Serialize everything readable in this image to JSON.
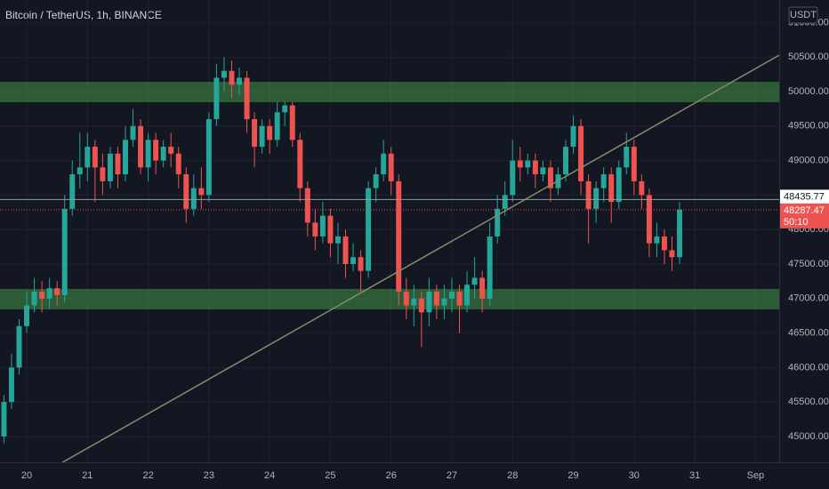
{
  "chart_data": {
    "type": "candlestick",
    "title": "Bitcoin / TetherUS, 1h, BINANCE",
    "currency": "USDT",
    "up_color": "#26a69a",
    "down_color": "#ef5350",
    "grid": true,
    "xlim": [
      19.56,
      32.39
    ],
    "xticks": [
      20,
      21,
      22,
      23,
      24,
      25,
      26,
      27,
      28,
      29,
      30,
      31,
      {
        "value": 32,
        "label": "Sep"
      }
    ],
    "ylim": [
      44626,
      51327
    ],
    "yticks": [
      {
        "value": 45000,
        "label": "45000.00"
      },
      {
        "value": 45500,
        "label": "45500.00"
      },
      {
        "value": 46000,
        "label": "46000.00"
      },
      {
        "value": 46500,
        "label": "46500.00"
      },
      {
        "value": 47000,
        "label": "47000.00"
      },
      {
        "value": 47500,
        "label": "47500.00"
      },
      {
        "value": 48000,
        "label": "48000.00"
      },
      {
        "value": 48500,
        "label": "48500.00"
      },
      {
        "value": 49000,
        "label": "49000.00"
      },
      {
        "value": 49500,
        "label": "49500.00"
      },
      {
        "value": 50000,
        "label": "50000.00"
      },
      {
        "value": 50500,
        "label": "50500.00"
      },
      {
        "value": 51000,
        "label": "51000.00"
      }
    ],
    "zones": [
      {
        "low": 49845,
        "high": 50142,
        "color": "rgba(76,175,80,0.45)"
      },
      {
        "low": 46843,
        "high": 47139,
        "color": "rgba(76,175,80,0.45)"
      }
    ],
    "trendline": {
      "x": [
        20.59,
        32.39
      ],
      "y": [
        44626,
        50528
      ],
      "color": "#8a8a6a"
    },
    "price_lines": [
      {
        "value": 48435.77,
        "color": "#9598a1",
        "label_color": "#ffffff",
        "text_color": "#131722"
      },
      {
        "value": 48287.47,
        "color": "#ef5350",
        "label_color": "#ef5350",
        "text_color": "#ffffff",
        "countdown": "50:10"
      }
    ],
    "x": [
      19.625,
      19.75,
      19.875,
      20,
      20.125,
      20.25,
      20.375,
      20.5,
      20.625,
      20.75,
      20.875,
      21,
      21.125,
      21.25,
      21.375,
      21.5,
      21.625,
      21.75,
      21.875,
      22,
      22.125,
      22.25,
      22.375,
      22.5,
      22.625,
      22.75,
      22.875,
      23,
      23.125,
      23.25,
      23.375,
      23.5,
      23.625,
      23.75,
      23.875,
      24,
      24.125,
      24.25,
      24.375,
      24.5,
      24.625,
      24.75,
      24.875,
      25,
      25.125,
      25.25,
      25.375,
      25.5,
      25.625,
      25.75,
      25.875,
      26,
      26.125,
      26.25,
      26.375,
      26.5,
      26.625,
      26.75,
      26.875,
      27,
      27.125,
      27.25,
      27.375,
      27.5,
      27.625,
      27.75,
      27.875,
      28,
      28.125,
      28.25,
      28.375,
      28.5,
      28.625,
      28.75,
      28.875,
      29,
      29.125,
      29.25,
      29.375,
      29.5,
      29.625,
      29.75,
      29.875,
      30,
      30.125,
      30.25,
      30.375,
      30.5,
      30.625,
      30.75
    ],
    "open": [
      45000,
      45500,
      46000,
      46600,
      46900,
      47100,
      47000,
      47150,
      47050,
      48300,
      48800,
      48900,
      49200,
      48900,
      48700,
      49100,
      48800,
      49300,
      49500,
      48900,
      49300,
      49000,
      49200,
      49100,
      48800,
      48300,
      48600,
      48500,
      49600,
      50200,
      50300,
      50100,
      50200,
      49600,
      49200,
      49500,
      49300,
      49700,
      49800,
      49300,
      48600,
      48100,
      47900,
      48200,
      47800,
      47900,
      47500,
      47600,
      47400,
      48600,
      48800,
      49100,
      48700,
      47100,
      46900,
      47000,
      46800,
      47100,
      46900,
      47000,
      47100,
      46900,
      47200,
      47300,
      47000,
      47900,
      48300,
      48500,
      49000,
      48900,
      49000,
      48800,
      48900,
      48600,
      48800,
      49200,
      49500,
      48700,
      48300,
      48600,
      48800,
      48400,
      48900,
      49200,
      48700,
      48500,
      47800,
      47900,
      47700,
      47600
    ],
    "high": [
      45600,
      46200,
      46700,
      47100,
      47300,
      47250,
      47300,
      47250,
      48500,
      49000,
      49400,
      49400,
      49300,
      49100,
      49200,
      49200,
      49500,
      49750,
      49600,
      49400,
      49400,
      49300,
      49400,
      49200,
      48900,
      48800,
      48900,
      49700,
      50400,
      50500,
      50450,
      50350,
      50300,
      49700,
      49600,
      49600,
      49850,
      49850,
      49850,
      49400,
      48700,
      48300,
      48400,
      48300,
      48100,
      48000,
      47800,
      47700,
      48700,
      48900,
      49300,
      49200,
      48800,
      47300,
      47200,
      47100,
      47300,
      47200,
      47200,
      47300,
      47200,
      47400,
      47600,
      47400,
      48100,
      48500,
      48700,
      49300,
      49200,
      49100,
      49100,
      49000,
      49000,
      48900,
      49300,
      49650,
      49600,
      48800,
      48700,
      48900,
      48900,
      49000,
      49400,
      49300,
      48800,
      48600,
      48100,
      48000,
      47900,
      48400
    ],
    "low": [
      44900,
      45400,
      45900,
      46500,
      46800,
      46800,
      46850,
      46900,
      46950,
      48200,
      48600,
      48700,
      48400,
      48500,
      48600,
      48600,
      48700,
      49200,
      48800,
      48700,
      48800,
      48900,
      48900,
      48600,
      48100,
      48200,
      48300,
      48400,
      49500,
      50000,
      49900,
      49950,
      49400,
      48900,
      49100,
      49100,
      49200,
      49500,
      49200,
      48400,
      47900,
      47700,
      47800,
      47600,
      47500,
      47300,
      47400,
      47100,
      47300,
      48400,
      48700,
      48500,
      46900,
      46700,
      46600,
      46300,
      46600,
      46700,
      46700,
      46800,
      46500,
      46800,
      47000,
      46800,
      46900,
      47800,
      48200,
      48400,
      48700,
      48800,
      48600,
      48700,
      48400,
      48500,
      48700,
      49100,
      48500,
      47800,
      48100,
      48400,
      48100,
      48300,
      48800,
      48500,
      48300,
      47600,
      47600,
      47500,
      47400,
      47500
    ],
    "close": [
      45500,
      46000,
      46600,
      46900,
      47100,
      47000,
      47150,
      47050,
      48300,
      48800,
      48900,
      49200,
      48900,
      48700,
      49100,
      48800,
      49300,
      49500,
      48900,
      49300,
      49000,
      49200,
      49100,
      48800,
      48300,
      48600,
      48500,
      49600,
      50200,
      50300,
      50100,
      50200,
      49600,
      49200,
      49500,
      49300,
      49700,
      49800,
      49300,
      48600,
      48100,
      47900,
      48200,
      47800,
      47900,
      47500,
      47600,
      47400,
      48600,
      48800,
      49100,
      48700,
      47100,
      46900,
      47000,
      46800,
      47100,
      46900,
      47000,
      47100,
      46900,
      47200,
      47300,
      47000,
      47900,
      48300,
      48500,
      49000,
      48900,
      49000,
      48800,
      48900,
      48600,
      48800,
      49200,
      49500,
      48700,
      48300,
      48600,
      48800,
      48400,
      48900,
      49200,
      48700,
      48500,
      47800,
      47900,
      47700,
      47600,
      48287.47
    ]
  }
}
